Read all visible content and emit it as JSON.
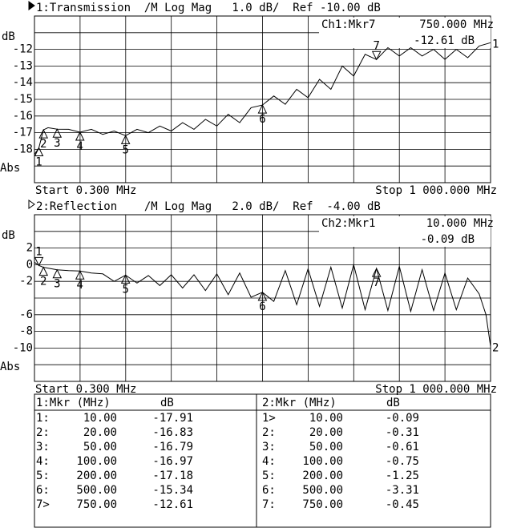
{
  "chart_data": [
    {
      "type": "line",
      "title": "1:Transmission  /M Log Mag   1.0 dB/  Ref -10.00 dB",
      "y_unit": "dB",
      "y_format": "Abs",
      "start": "Start 0.300 MHz",
      "stop": "Stop 1 000.000 MHz",
      "readout": [
        "Ch1:Mkr7",
        "750.000 MHz",
        "-12.61 dB"
      ],
      "trace_label": "1",
      "color": "#000000",
      "xlim": [
        0.3,
        1000
      ],
      "ylim": [
        -20,
        -10
      ],
      "yticks": [
        -12,
        -13,
        -14,
        -15,
        -16,
        -17,
        -18
      ],
      "x": [
        0.3,
        10,
        20,
        30,
        50,
        75,
        100,
        125,
        150,
        175,
        200,
        225,
        250,
        275,
        300,
        325,
        350,
        375,
        400,
        425,
        450,
        475,
        500,
        525,
        550,
        575,
        600,
        625,
        650,
        675,
        700,
        725,
        750,
        775,
        800,
        825,
        850,
        875,
        900,
        925,
        950,
        975,
        1000
      ],
      "values": [
        -18.3,
        -17.91,
        -16.83,
        -16.7,
        -16.79,
        -16.8,
        -16.97,
        -16.8,
        -17.1,
        -16.9,
        -17.18,
        -16.8,
        -17.0,
        -16.6,
        -16.9,
        -16.4,
        -16.8,
        -16.2,
        -16.6,
        -15.9,
        -16.4,
        -15.5,
        -15.34,
        -14.8,
        -15.3,
        -14.4,
        -14.9,
        -13.8,
        -14.4,
        -13.0,
        -13.6,
        -12.3,
        -12.61,
        -11.9,
        -12.4,
        -11.9,
        -12.4,
        -12.0,
        -12.6,
        -12.0,
        -12.5,
        -11.8,
        -11.6
      ],
      "markers": [
        {
          "label": "1",
          "x": 10,
          "value": -17.91
        },
        {
          "label": "2",
          "x": 20,
          "value": -16.83
        },
        {
          "label": "3",
          "x": 50,
          "value": -16.79
        },
        {
          "label": "4",
          "x": 100,
          "value": -16.97
        },
        {
          "label": "5",
          "x": 200,
          "value": -17.18
        },
        {
          "label": "6",
          "x": 500,
          "value": -15.34
        },
        {
          "label": "7",
          "x": 750,
          "value": -12.61,
          "active": true
        }
      ]
    },
    {
      "type": "line",
      "title": "2:Reflection    /M Log Mag   2.0 dB/  Ref  -4.00 dB",
      "y_unit": "dB",
      "y_format": "Abs",
      "start": "Start 0.300 MHz",
      "stop": "Stop 1 000.000 MHz",
      "readout": [
        "Ch2:Mkr1",
        "10.000 MHz",
        "-0.09 dB"
      ],
      "trace_label": "2",
      "color": "#000000",
      "xlim": [
        0.3,
        1000
      ],
      "ylim": [
        -14,
        6
      ],
      "yticks": [
        2,
        0,
        -2,
        -6,
        -8,
        -10
      ],
      "x": [
        0.3,
        10,
        20,
        50,
        75,
        100,
        125,
        150,
        175,
        200,
        225,
        250,
        275,
        300,
        325,
        350,
        375,
        400,
        425,
        450,
        475,
        500,
        525,
        550,
        575,
        600,
        625,
        650,
        675,
        700,
        725,
        750,
        775,
        800,
        825,
        850,
        875,
        900,
        925,
        950,
        975,
        990,
        1000
      ],
      "values": [
        0.3,
        -0.09,
        -0.31,
        -0.61,
        -0.7,
        -0.75,
        -1.0,
        -1.1,
        -2.0,
        -1.25,
        -2.2,
        -1.3,
        -2.5,
        -1.2,
        -2.8,
        -1.2,
        -3.1,
        -1.1,
        -3.6,
        -1.0,
        -3.9,
        -3.31,
        -4.4,
        -0.7,
        -4.8,
        -0.5,
        -5.0,
        -0.3,
        -5.2,
        0.0,
        -5.4,
        -0.45,
        -5.5,
        -0.2,
        -5.6,
        -0.6,
        -5.5,
        -1.0,
        -5.4,
        -1.6,
        -3.5,
        -6.0,
        -9.8
      ],
      "markers": [
        {
          "label": "1",
          "x": 10,
          "value": -0.09,
          "active": true
        },
        {
          "label": "2",
          "x": 20,
          "value": -0.31
        },
        {
          "label": "3",
          "x": 50,
          "value": -0.61
        },
        {
          "label": "4",
          "x": 100,
          "value": -0.75
        },
        {
          "label": "5",
          "x": 200,
          "value": -1.25
        },
        {
          "label": "6",
          "x": 500,
          "value": -3.31
        },
        {
          "label": "7",
          "x": 750,
          "value": -0.45
        }
      ]
    }
  ],
  "table": {
    "left": {
      "header": [
        "1:Mkr (MHz)",
        "dB"
      ],
      "rows": [
        [
          "1:",
          "10.00",
          "-17.91"
        ],
        [
          "2:",
          "20.00",
          "-16.83"
        ],
        [
          "3:",
          "50.00",
          "-16.79"
        ],
        [
          "4:",
          "100.00",
          "-16.97"
        ],
        [
          "5:",
          "200.00",
          "-17.18"
        ],
        [
          "6:",
          "500.00",
          "-15.34"
        ],
        [
          "7>",
          "750.00",
          "-12.61"
        ]
      ]
    },
    "right": {
      "header": [
        "2:Mkr (MHz)",
        "dB"
      ],
      "rows": [
        [
          "1>",
          "10.00",
          "-0.09"
        ],
        [
          "2:",
          "20.00",
          "-0.31"
        ],
        [
          "3:",
          "50.00",
          "-0.61"
        ],
        [
          "4:",
          "100.00",
          "-0.75"
        ],
        [
          "5:",
          "200.00",
          "-1.25"
        ],
        [
          "6:",
          "500.00",
          "-3.31"
        ],
        [
          "7:",
          "750.00",
          "-0.45"
        ]
      ]
    }
  }
}
